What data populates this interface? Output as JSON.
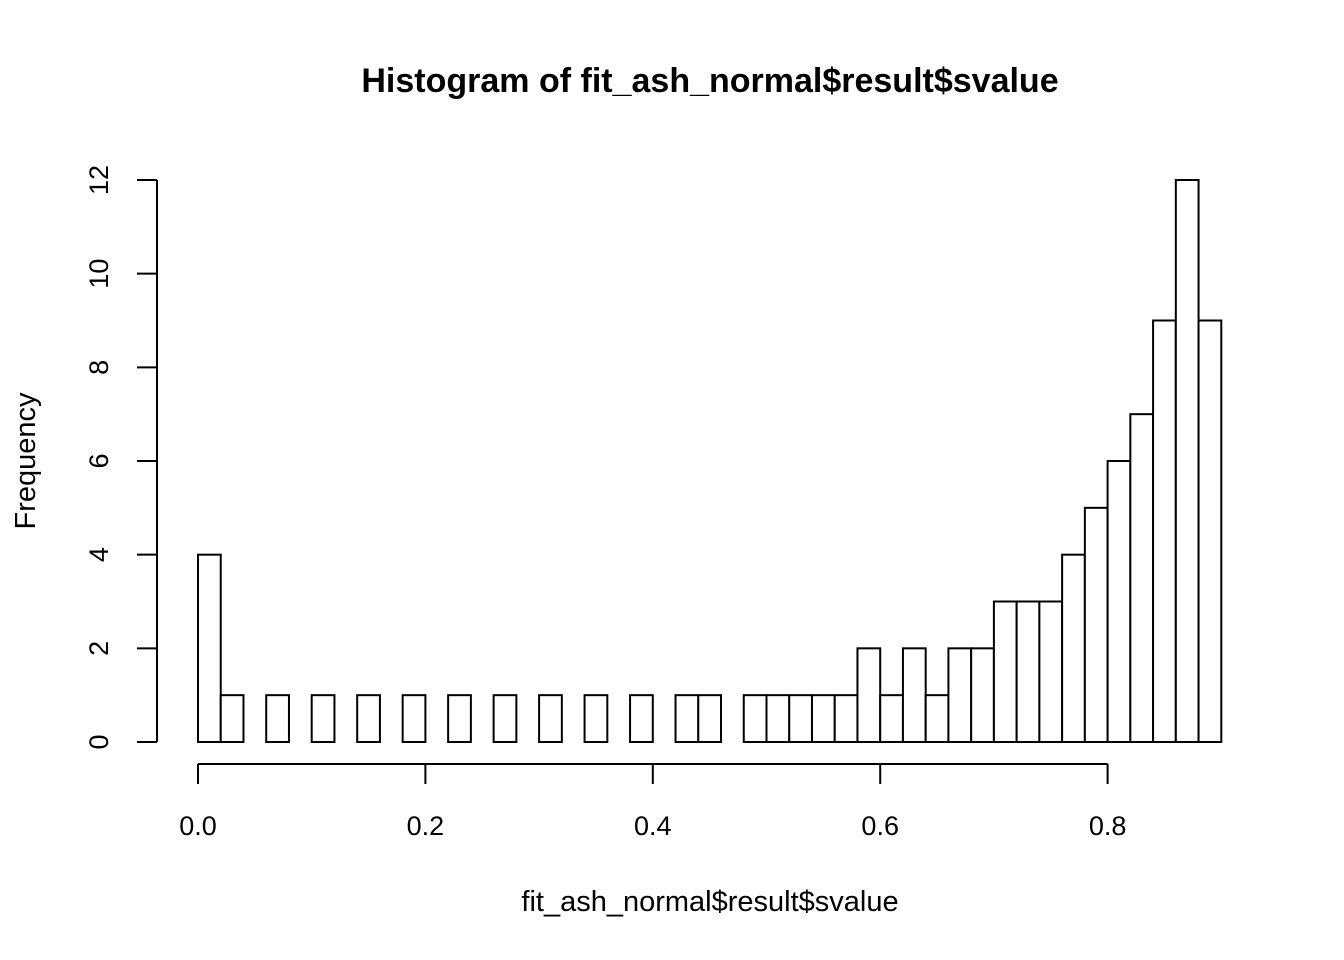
{
  "chart_data": {
    "type": "bar",
    "title": "Histogram of fit_ash_normal$result$svalue",
    "xlabel": "fit_ash_normal$result$svalue",
    "ylabel": "Frequency",
    "bin_width": 0.02,
    "bins_start": 0.0,
    "values": [
      4,
      1,
      0,
      1,
      0,
      1,
      0,
      1,
      0,
      1,
      0,
      1,
      0,
      1,
      0,
      1,
      0,
      1,
      0,
      1,
      0,
      1,
      1,
      0,
      1,
      1,
      1,
      1,
      1,
      2,
      1,
      2,
      1,
      2,
      2,
      3,
      3,
      3,
      4,
      5,
      6,
      7,
      9,
      12,
      9
    ],
    "xlim": [
      0.0,
      0.9
    ],
    "ylim": [
      0,
      12
    ],
    "x_ticks": [
      0.0,
      0.2,
      0.4,
      0.6,
      0.8
    ],
    "x_tick_labels": [
      "0.0",
      "0.2",
      "0.4",
      "0.6",
      "0.8"
    ],
    "y_ticks": [
      0,
      2,
      4,
      6,
      8,
      10,
      12
    ],
    "y_tick_labels": [
      "0",
      "2",
      "4",
      "6",
      "8",
      "10",
      "12"
    ],
    "grid": false,
    "colors": {
      "bar_fill": "#ffffff",
      "bar_stroke": "#000000"
    }
  }
}
